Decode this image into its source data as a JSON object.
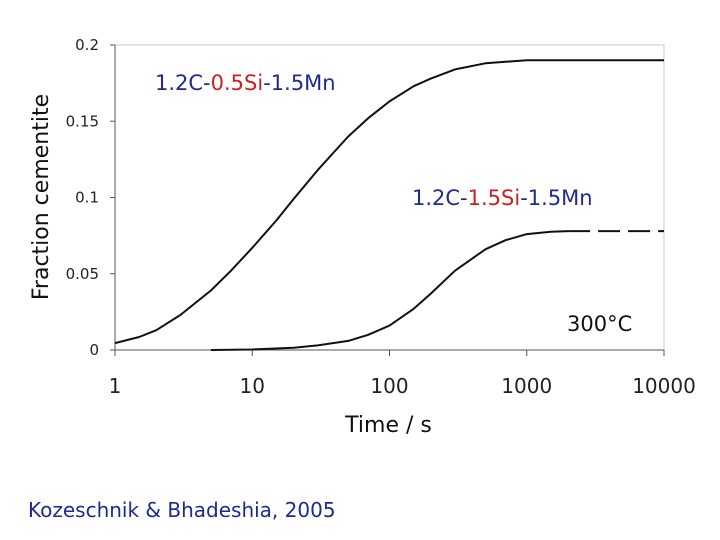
{
  "chart_data": {
    "type": "line",
    "xscale": "log",
    "xlabel": "Time / s",
    "ylabel": "Fraction cementite",
    "xlim": [
      1,
      10000
    ],
    "ylim": [
      0,
      0.2
    ],
    "xticks": [
      "1",
      "10",
      "100",
      "1000",
      "10000"
    ],
    "yticks": [
      "0",
      "0.05",
      "0.1",
      "0.15",
      "0.2"
    ],
    "grid": false,
    "series": [
      {
        "name": "1.2C-0.5Si-1.5Mn",
        "label_parts": [
          {
            "text": "1.2C-",
            "color": "#1f2a8f"
          },
          {
            "text": "0.5Si",
            "color": "#cc2020"
          },
          {
            "text": "-1.5Mn",
            "color": "#1f2a8f"
          }
        ],
        "x": [
          1,
          1.5,
          2,
          3,
          5,
          7,
          10,
          15,
          20,
          30,
          50,
          70,
          100,
          150,
          200,
          300,
          500,
          700,
          1000,
          2000,
          5000,
          10000
        ],
        "y": [
          0.0045,
          0.0085,
          0.013,
          0.023,
          0.039,
          0.052,
          0.067,
          0.085,
          0.099,
          0.118,
          0.14,
          0.152,
          0.163,
          0.173,
          0.178,
          0.184,
          0.188,
          0.189,
          0.19,
          0.19,
          0.19,
          0.19
        ],
        "style": "solid"
      },
      {
        "name": "1.2C-1.5Si-1.5Mn",
        "label_parts": [
          {
            "text": "1.2C-",
            "color": "#1f2a8f"
          },
          {
            "text": "1.5Si",
            "color": "#cc2020"
          },
          {
            "text": "-1.5Mn",
            "color": "#1f2a8f"
          }
        ],
        "x": [
          5,
          10,
          20,
          30,
          50,
          70,
          100,
          150,
          200,
          300,
          500,
          700,
          1000,
          1500,
          2000
        ],
        "y": [
          0,
          0.0003,
          0.0015,
          0.003,
          0.006,
          0.01,
          0.016,
          0.027,
          0.037,
          0.052,
          0.066,
          0.072,
          0.076,
          0.0775,
          0.078
        ],
        "style": "solid"
      },
      {
        "name": "1.2C-1.5Si-1.5Mn (extrapolated)",
        "x": [
          2000,
          10000
        ],
        "y": [
          0.078,
          0.078
        ],
        "style": "dashed"
      }
    ],
    "annotations": [
      {
        "text": "300°C"
      }
    ]
  },
  "citation": "Kozeschnik & Bhadeshia, 2005"
}
